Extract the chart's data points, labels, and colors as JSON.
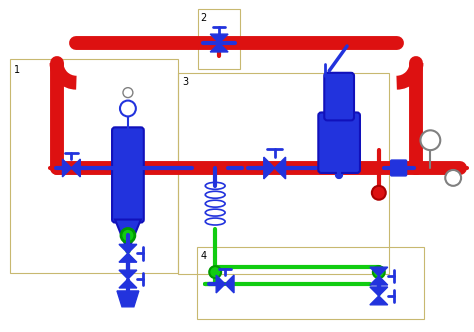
{
  "bg_color": "#ffffff",
  "pipe_red": "#dd1111",
  "pipe_blue": "#2233dd",
  "pipe_green": "#11cc11",
  "pipe_dark_green": "#009900",
  "lw_main": 10,
  "lw_med": 6,
  "lw_sm": 3,
  "box_color": "#c8b870",
  "fig_w": 4.74,
  "fig_h": 3.32,
  "dpi": 100
}
